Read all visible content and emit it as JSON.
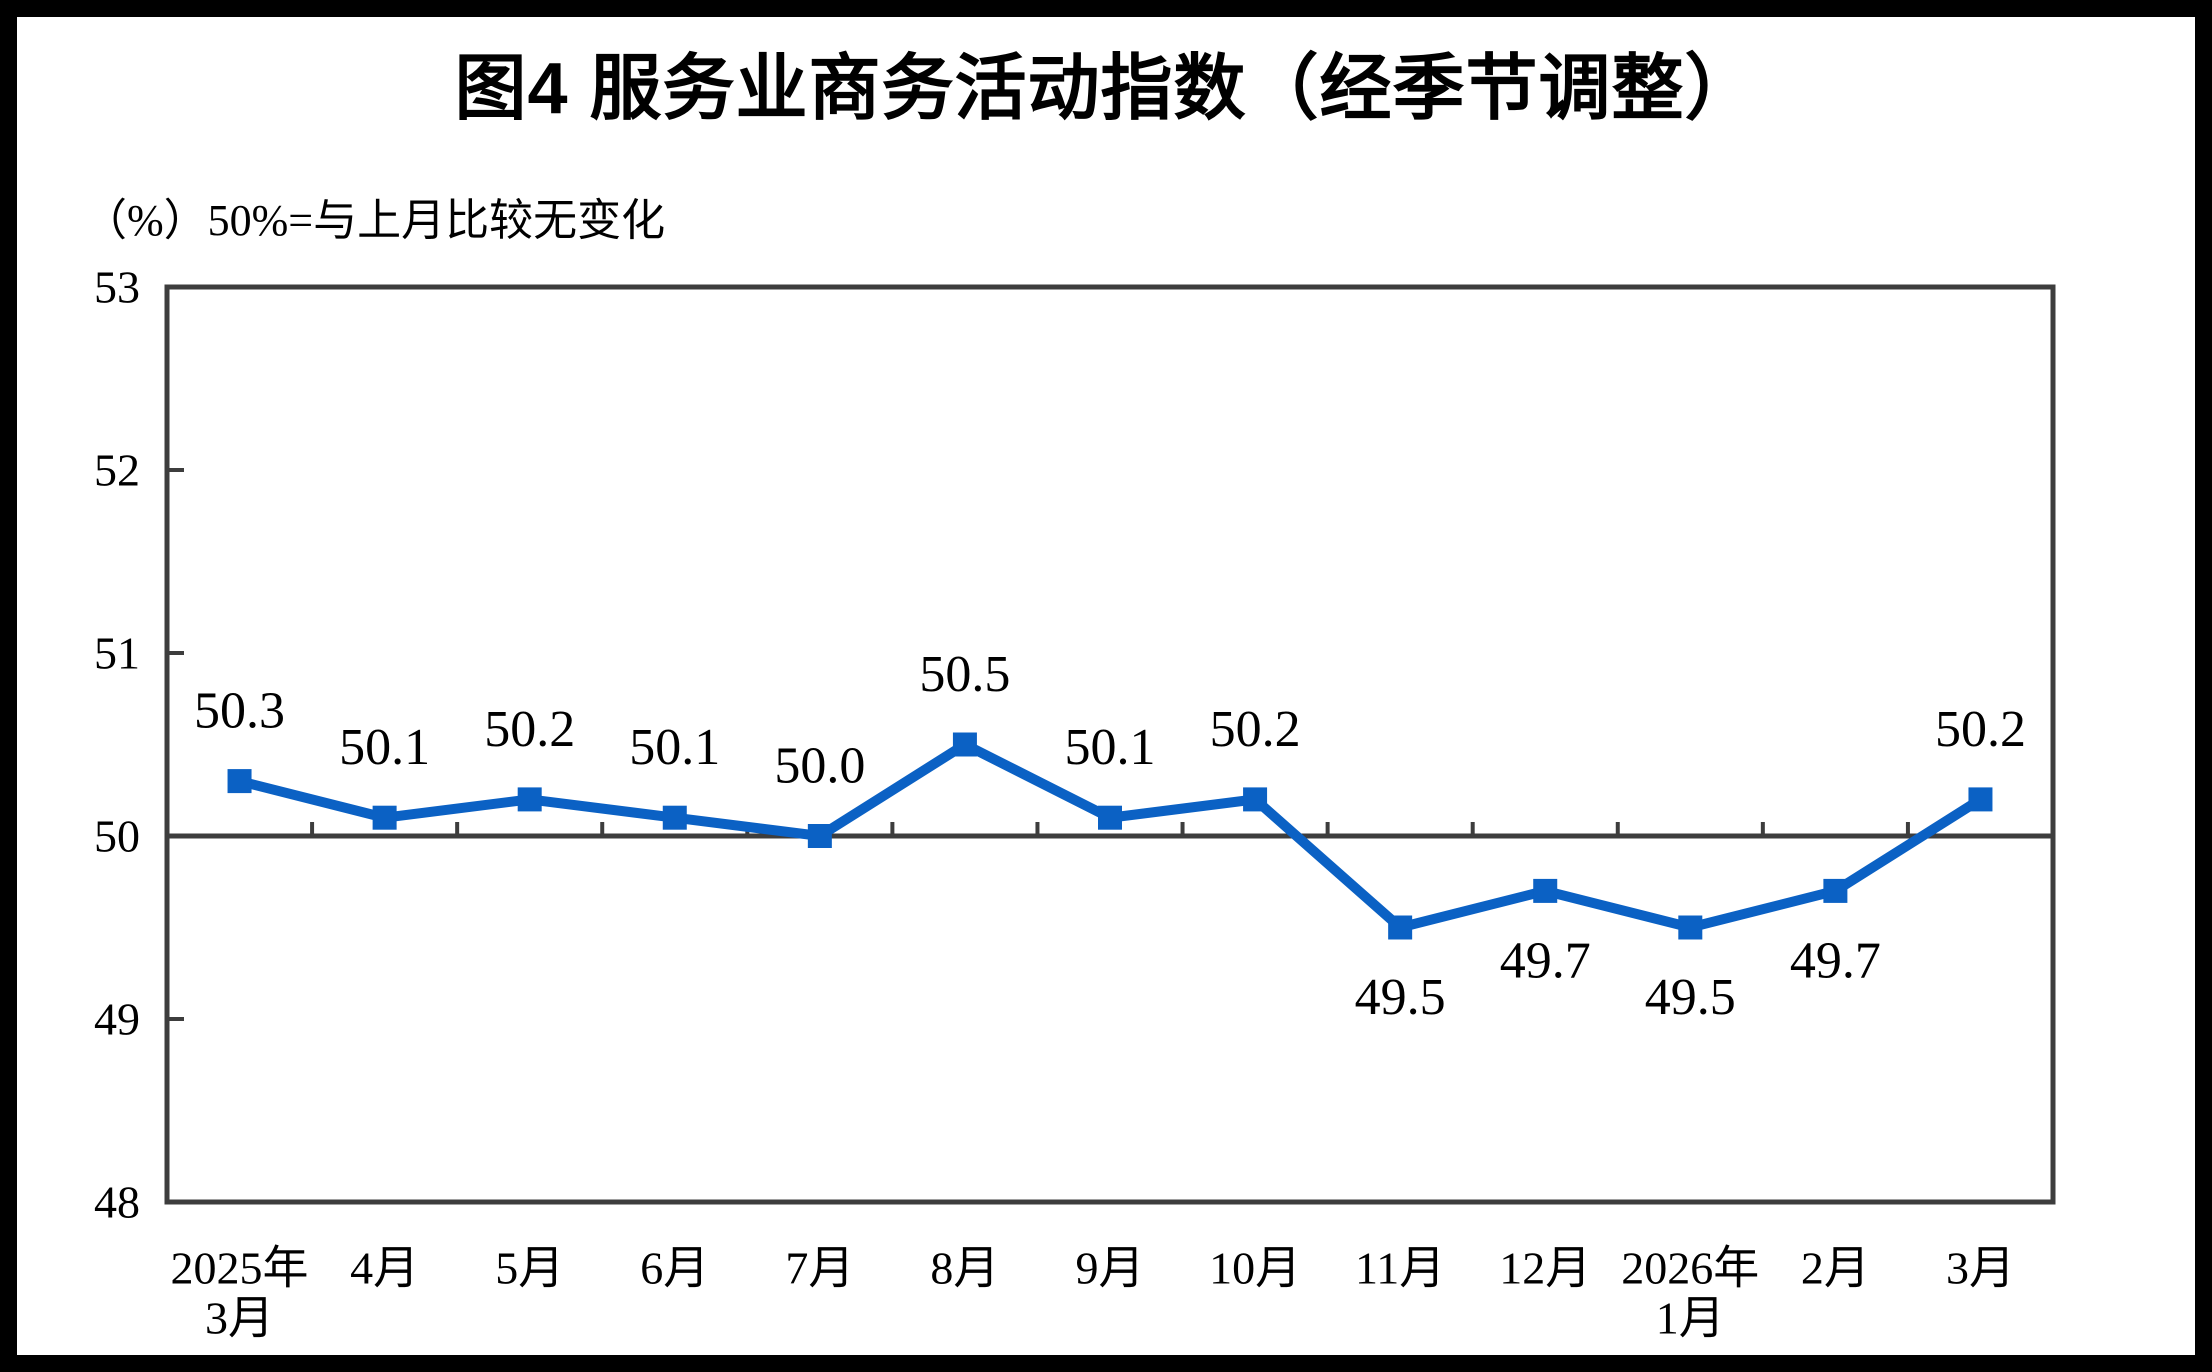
{
  "chart_data": {
    "type": "line",
    "title": "图4  服务业商务活动指数（经季节调整）",
    "subtitle": "（%）50%=与上月比较无变化",
    "categories": [
      "2025年\n3月",
      "4月",
      "5月",
      "6月",
      "7月",
      "8月",
      "9月",
      "10月",
      "11月",
      "12月",
      "2026年\n1月",
      "2月",
      "3月"
    ],
    "values": [
      50.3,
      50.1,
      50.2,
      50.1,
      50.0,
      50.5,
      50.1,
      50.2,
      49.5,
      49.7,
      49.5,
      49.7,
      50.2
    ],
    "data_labels": [
      "50.3",
      "50.1",
      "50.2",
      "50.1",
      "50.0",
      "50.5",
      "50.1",
      "50.2",
      "49.5",
      "49.7",
      "49.5",
      "49.7",
      "50.2"
    ],
    "ylim": [
      48,
      53
    ],
    "yticks": [
      48,
      49,
      50,
      51,
      52,
      53
    ],
    "reference_line_y": 50,
    "grid": false,
    "legend": "none",
    "marker": "square",
    "label_position_rule": "above line when value >= 50, below when value < 50",
    "colors": {
      "line": "#0b61c4",
      "marker": "#0b61c4",
      "axis": "#3d3d3d",
      "text": "#000000",
      "background": "#ffffff",
      "frame": "#000000"
    }
  }
}
